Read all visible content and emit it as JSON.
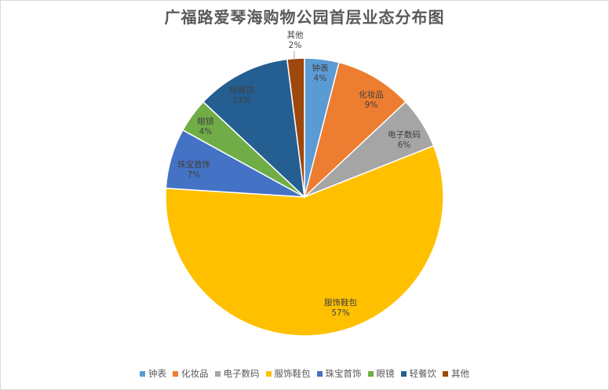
{
  "chart_data": {
    "type": "pie",
    "title": "广福路爱琴海购物公园首层业态分布图",
    "slices": [
      {
        "label": "钟表",
        "value": 4,
        "display": "4%",
        "color": "#5b9bd5"
      },
      {
        "label": "化妆品",
        "value": 9,
        "display": "9%",
        "color": "#ed7d31"
      },
      {
        "label": "电子数码",
        "value": 6,
        "display": "6%",
        "color": "#a5a5a5"
      },
      {
        "label": "服饰鞋包",
        "value": 57,
        "display": "57%",
        "color": "#ffc000"
      },
      {
        "label": "珠宝首饰",
        "value": 7,
        "display": "7%",
        "color": "#4472c4"
      },
      {
        "label": "眼镜",
        "value": 4,
        "display": "4%",
        "color": "#70ad47"
      },
      {
        "label": "轻餐饮",
        "value": 11,
        "display": "11%",
        "color": "#255e91"
      },
      {
        "label": "其他",
        "value": 2,
        "display": "2%",
        "color": "#9e480e"
      }
    ],
    "legend_position": "bottom"
  }
}
